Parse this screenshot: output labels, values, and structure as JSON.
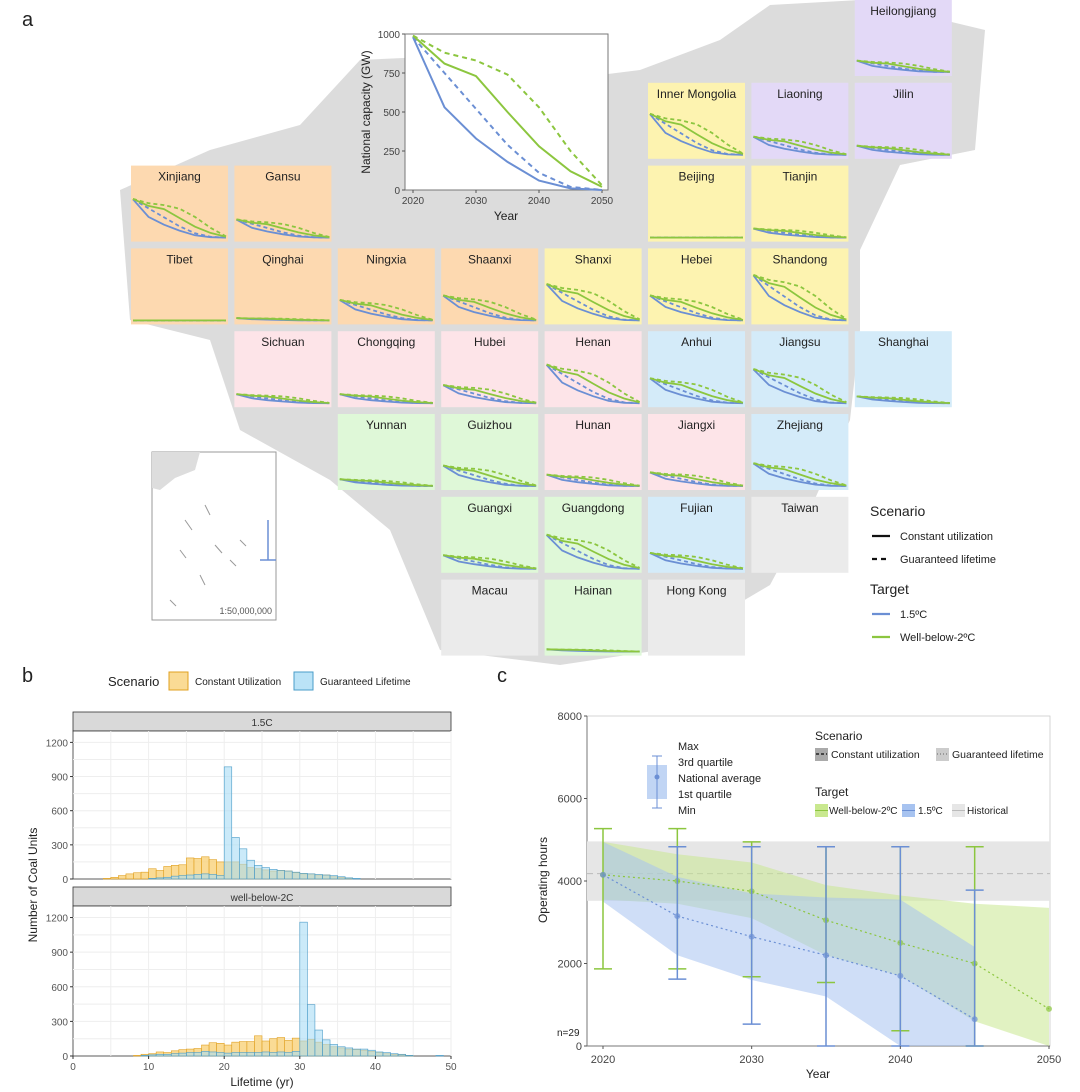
{
  "panel_labels": {
    "a": "a",
    "b": "b",
    "c": "c"
  },
  "colors": {
    "target_1_5C": "#6b8fd4",
    "target_wb2C": "#8cc63f",
    "region_orange": "#fdd9b0",
    "region_yellow": "#fdf3b0",
    "region_purple": "#e3d9f7",
    "region_pink": "#fde4e8",
    "region_blue": "#d4ebf9",
    "region_green": "#dff8d8",
    "region_gray": "#ebebeb",
    "constant_utilization": "#f9d27a",
    "guaranteed_lifetime": "#a9dcf5",
    "historical": "#e6e6e6"
  },
  "map": {
    "scale_text": "1:50,000,000",
    "legend": {
      "scenario_title": "Scenario",
      "scenario_items": [
        {
          "label": "Constant utilization",
          "style": "solid"
        },
        {
          "label": "Guaranteed lifetime",
          "style": "dashed"
        }
      ],
      "target_title": "Target",
      "target_items": [
        {
          "label": "1.5ºC",
          "color": "#6b8fd4"
        },
        {
          "label": "Well-below-2ºC",
          "color": "#8cc63f"
        }
      ]
    },
    "provinces": [
      {
        "name": "Heilongjiang",
        "row": 0,
        "col": 7,
        "region": "purple",
        "relative_capacity": 0.25
      },
      {
        "name": "Inner Mongolia",
        "row": 1,
        "col": 5,
        "region": "yellow",
        "relative_capacity": 0.9
      },
      {
        "name": "Liaoning",
        "row": 1,
        "col": 6,
        "region": "purple",
        "relative_capacity": 0.4
      },
      {
        "name": "Jilin",
        "row": 1,
        "col": 7,
        "region": "purple",
        "relative_capacity": 0.2
      },
      {
        "name": "Xinjiang",
        "row": 2,
        "col": 0,
        "region": "orange",
        "relative_capacity": 0.85
      },
      {
        "name": "Gansu",
        "row": 2,
        "col": 1,
        "region": "orange",
        "relative_capacity": 0.4
      },
      {
        "name": "Beijing",
        "row": 2,
        "col": 5,
        "region": "yellow",
        "relative_capacity": 0
      },
      {
        "name": "Tianjin",
        "row": 2,
        "col": 6,
        "region": "yellow",
        "relative_capacity": 0.2
      },
      {
        "name": "Tibet",
        "row": 3,
        "col": 0,
        "region": "orange",
        "relative_capacity": 0
      },
      {
        "name": "Qinghai",
        "row": 3,
        "col": 1,
        "region": "orange",
        "relative_capacity": 0.05
      },
      {
        "name": "Ningxia",
        "row": 3,
        "col": 2,
        "region": "orange",
        "relative_capacity": 0.45
      },
      {
        "name": "Shaanxi",
        "row": 3,
        "col": 3,
        "region": "orange",
        "relative_capacity": 0.55
      },
      {
        "name": "Shanxi",
        "row": 3,
        "col": 4,
        "region": "yellow",
        "relative_capacity": 0.8
      },
      {
        "name": "Hebei",
        "row": 3,
        "col": 5,
        "region": "yellow",
        "relative_capacity": 0.55
      },
      {
        "name": "Shandong",
        "row": 3,
        "col": 6,
        "region": "yellow",
        "relative_capacity": 1.0
      },
      {
        "name": "Sichuan",
        "row": 4,
        "col": 1,
        "region": "pink",
        "relative_capacity": 0.2
      },
      {
        "name": "Chongqing",
        "row": 4,
        "col": 2,
        "region": "pink",
        "relative_capacity": 0.2
      },
      {
        "name": "Hubei",
        "row": 4,
        "col": 3,
        "region": "pink",
        "relative_capacity": 0.4
      },
      {
        "name": "Henan",
        "row": 4,
        "col": 4,
        "region": "pink",
        "relative_capacity": 0.85
      },
      {
        "name": "Anhui",
        "row": 4,
        "col": 5,
        "region": "blue",
        "relative_capacity": 0.55
      },
      {
        "name": "Jiangsu",
        "row": 4,
        "col": 6,
        "region": "blue",
        "relative_capacity": 0.75
      },
      {
        "name": "Shanghai",
        "row": 4,
        "col": 7,
        "region": "blue",
        "relative_capacity": 0.15
      },
      {
        "name": "Yunnan",
        "row": 5,
        "col": 2,
        "region": "green",
        "relative_capacity": 0.15
      },
      {
        "name": "Guizhou",
        "row": 5,
        "col": 3,
        "region": "green",
        "relative_capacity": 0.45
      },
      {
        "name": "Hunan",
        "row": 5,
        "col": 4,
        "region": "pink",
        "relative_capacity": 0.25
      },
      {
        "name": "Jiangxi",
        "row": 5,
        "col": 5,
        "region": "pink",
        "relative_capacity": 0.3
      },
      {
        "name": "Zhejiang",
        "row": 5,
        "col": 6,
        "region": "blue",
        "relative_capacity": 0.5
      },
      {
        "name": "Guangxi",
        "row": 6,
        "col": 3,
        "region": "green",
        "relative_capacity": 0.3
      },
      {
        "name": "Guangdong",
        "row": 6,
        "col": 4,
        "region": "green",
        "relative_capacity": 0.75
      },
      {
        "name": "Fujian",
        "row": 6,
        "col": 5,
        "region": "blue",
        "relative_capacity": 0.35
      },
      {
        "name": "Taiwan",
        "row": 6,
        "col": 6,
        "region": "gray",
        "relative_capacity": null
      },
      {
        "name": "Macau",
        "row": 7,
        "col": 3,
        "region": "gray",
        "relative_capacity": null
      },
      {
        "name": "Hainan",
        "row": 7,
        "col": 4,
        "region": "green",
        "relative_capacity": 0.05
      },
      {
        "name": "Hong Kong",
        "row": 7,
        "col": 5,
        "region": "gray",
        "relative_capacity": null
      }
    ]
  },
  "chart_data": [
    {
      "id": "national",
      "type": "line",
      "xlabel": "Year",
      "ylabel": "National capacity (GW)",
      "xlim": [
        2020,
        2050
      ],
      "ylim": [
        0,
        1000
      ],
      "xticks": [
        "2020",
        "2030",
        "2040",
        "2050"
      ],
      "yticks": [
        "0",
        "250",
        "500",
        "750",
        "1000"
      ],
      "x": [
        2020,
        2025,
        2030,
        2035,
        2040,
        2045,
        2050
      ],
      "series": [
        {
          "target": "1.5ºC",
          "scenario": "Constant utilization",
          "color": "#6b8fd4",
          "dash": false,
          "values": [
            980,
            530,
            330,
            180,
            60,
            10,
            0
          ]
        },
        {
          "target": "1.5ºC",
          "scenario": "Guaranteed lifetime",
          "color": "#6b8fd4",
          "dash": true,
          "values": [
            980,
            750,
            520,
            290,
            110,
            20,
            0
          ]
        },
        {
          "target": "Well-below-2ºC",
          "scenario": "Constant utilization",
          "color": "#8cc63f",
          "dash": false,
          "values": [
            990,
            810,
            730,
            500,
            280,
            120,
            20
          ]
        },
        {
          "target": "Well-below-2ºC",
          "scenario": "Guaranteed lifetime",
          "color": "#8cc63f",
          "dash": true,
          "values": [
            990,
            880,
            830,
            740,
            530,
            250,
            30
          ]
        }
      ]
    },
    {
      "id": "lifetime",
      "type": "bar",
      "legend_title": "Scenario",
      "legend": [
        "Constant Utilization",
        "Guaranteed Lifetime"
      ],
      "legend_placement": "top",
      "xlabel": "Lifetime (yr)",
      "ylabel": "Number of Coal Units",
      "xlim": [
        0,
        50
      ],
      "ylim": [
        0,
        1300
      ],
      "xticks": [
        "0",
        "10",
        "20",
        "30",
        "40",
        "50"
      ],
      "yticks": [
        "0",
        "300",
        "600",
        "900",
        "1200"
      ],
      "bin_start": 0,
      "bin_width": 1,
      "grid": true,
      "facets": [
        {
          "label": "1.5C",
          "constant_utilization": [
            0,
            0,
            0,
            0,
            5,
            15,
            30,
            45,
            55,
            60,
            90,
            75,
            110,
            120,
            125,
            185,
            180,
            195,
            170,
            150,
            150,
            150,
            130,
            100,
            90,
            80,
            70,
            75,
            70,
            55,
            45,
            45,
            35,
            35,
            20,
            15,
            8,
            0,
            0,
            0,
            0,
            0,
            0,
            0,
            0,
            0,
            0,
            0,
            0,
            0
          ],
          "guaranteed_lifetime": [
            0,
            0,
            0,
            0,
            0,
            0,
            0,
            0,
            0,
            0,
            5,
            10,
            15,
            25,
            30,
            35,
            40,
            45,
            40,
            30,
            985,
            365,
            265,
            165,
            120,
            100,
            85,
            75,
            70,
            60,
            50,
            45,
            40,
            35,
            30,
            20,
            10,
            5,
            0,
            0,
            0,
            0,
            0,
            0,
            0,
            0,
            0,
            0,
            0,
            0
          ]
        },
        {
          "label": "well-below-2C",
          "constant_utilization": [
            0,
            0,
            0,
            0,
            0,
            0,
            0,
            0,
            5,
            15,
            20,
            35,
            30,
            45,
            55,
            60,
            65,
            95,
            115,
            110,
            95,
            120,
            125,
            125,
            175,
            130,
            150,
            160,
            135,
            155,
            130,
            145,
            120,
            100,
            80,
            70,
            60,
            55,
            50,
            40,
            30,
            20,
            15,
            10,
            5,
            0,
            0,
            0,
            0,
            0
          ],
          "guaranteed_lifetime": [
            0,
            0,
            0,
            0,
            0,
            0,
            0,
            0,
            0,
            5,
            10,
            15,
            15,
            20,
            25,
            30,
            30,
            40,
            35,
            30,
            25,
            30,
            30,
            30,
            30,
            35,
            30,
            35,
            30,
            40,
            1160,
            445,
            225,
            140,
            100,
            80,
            70,
            60,
            60,
            50,
            35,
            30,
            20,
            15,
            5,
            0,
            0,
            0,
            5,
            0
          ]
        }
      ]
    },
    {
      "id": "operating_hours",
      "type": "line",
      "xlabel": "Year",
      "ylabel": "Operating hours",
      "xlim": [
        2019,
        2050
      ],
      "ylim": [
        0,
        8000
      ],
      "xticks": [
        "2020",
        "2030",
        "2040",
        "2050"
      ],
      "yticks": [
        "0",
        "2000",
        "4000",
        "6000",
        "8000"
      ],
      "annotation": "n=29",
      "boxkey_labels": [
        "Max",
        "3rd quartile",
        "National average",
        "1st quartile",
        "Min"
      ],
      "legend": {
        "scenario_title": "Scenario",
        "scenario_items": [
          "Constant utilization",
          "Guaranteed lifetime"
        ],
        "target_title": "Target",
        "target_items": [
          "Well-below-2ºC",
          "1.5ºC",
          "Historical"
        ]
      },
      "historical": {
        "q1": 3520,
        "q3": 4960,
        "average": 4180
      },
      "series": [
        {
          "name": "Well-below-2ºC",
          "color": "#8cc63f",
          "x": [
            2020,
            2025,
            2030,
            2035,
            2040,
            2045,
            2050
          ],
          "average": [
            4150,
            4000,
            3750,
            3050,
            2500,
            2000,
            900
          ],
          "q3": [
            4950,
            4650,
            4450,
            3900,
            3650,
            3450,
            3350
          ],
          "q1": [
            3550,
            3450,
            3100,
            2200,
            1700,
            600,
            0
          ],
          "max": [
            5270,
            5270,
            4950,
            4830,
            4830,
            4830,
            null
          ],
          "min": [
            1870,
            1870,
            1680,
            1540,
            370,
            0,
            null
          ]
        },
        {
          "name": "1.5ºC",
          "color": "#6b8fd4",
          "x": [
            2020,
            2025,
            2030,
            2035,
            2040,
            2045
          ],
          "average": [
            4150,
            3150,
            2650,
            2200,
            1700,
            650
          ],
          "q3": [
            4950,
            4100,
            3700,
            3600,
            3550,
            2400
          ],
          "q1": [
            3500,
            2200,
            1600,
            1200,
            0,
            0
          ],
          "max": [
            null,
            4830,
            4830,
            4830,
            4830,
            3780
          ],
          "min": [
            null,
            1620,
            530,
            0,
            0,
            0
          ]
        }
      ]
    }
  ]
}
